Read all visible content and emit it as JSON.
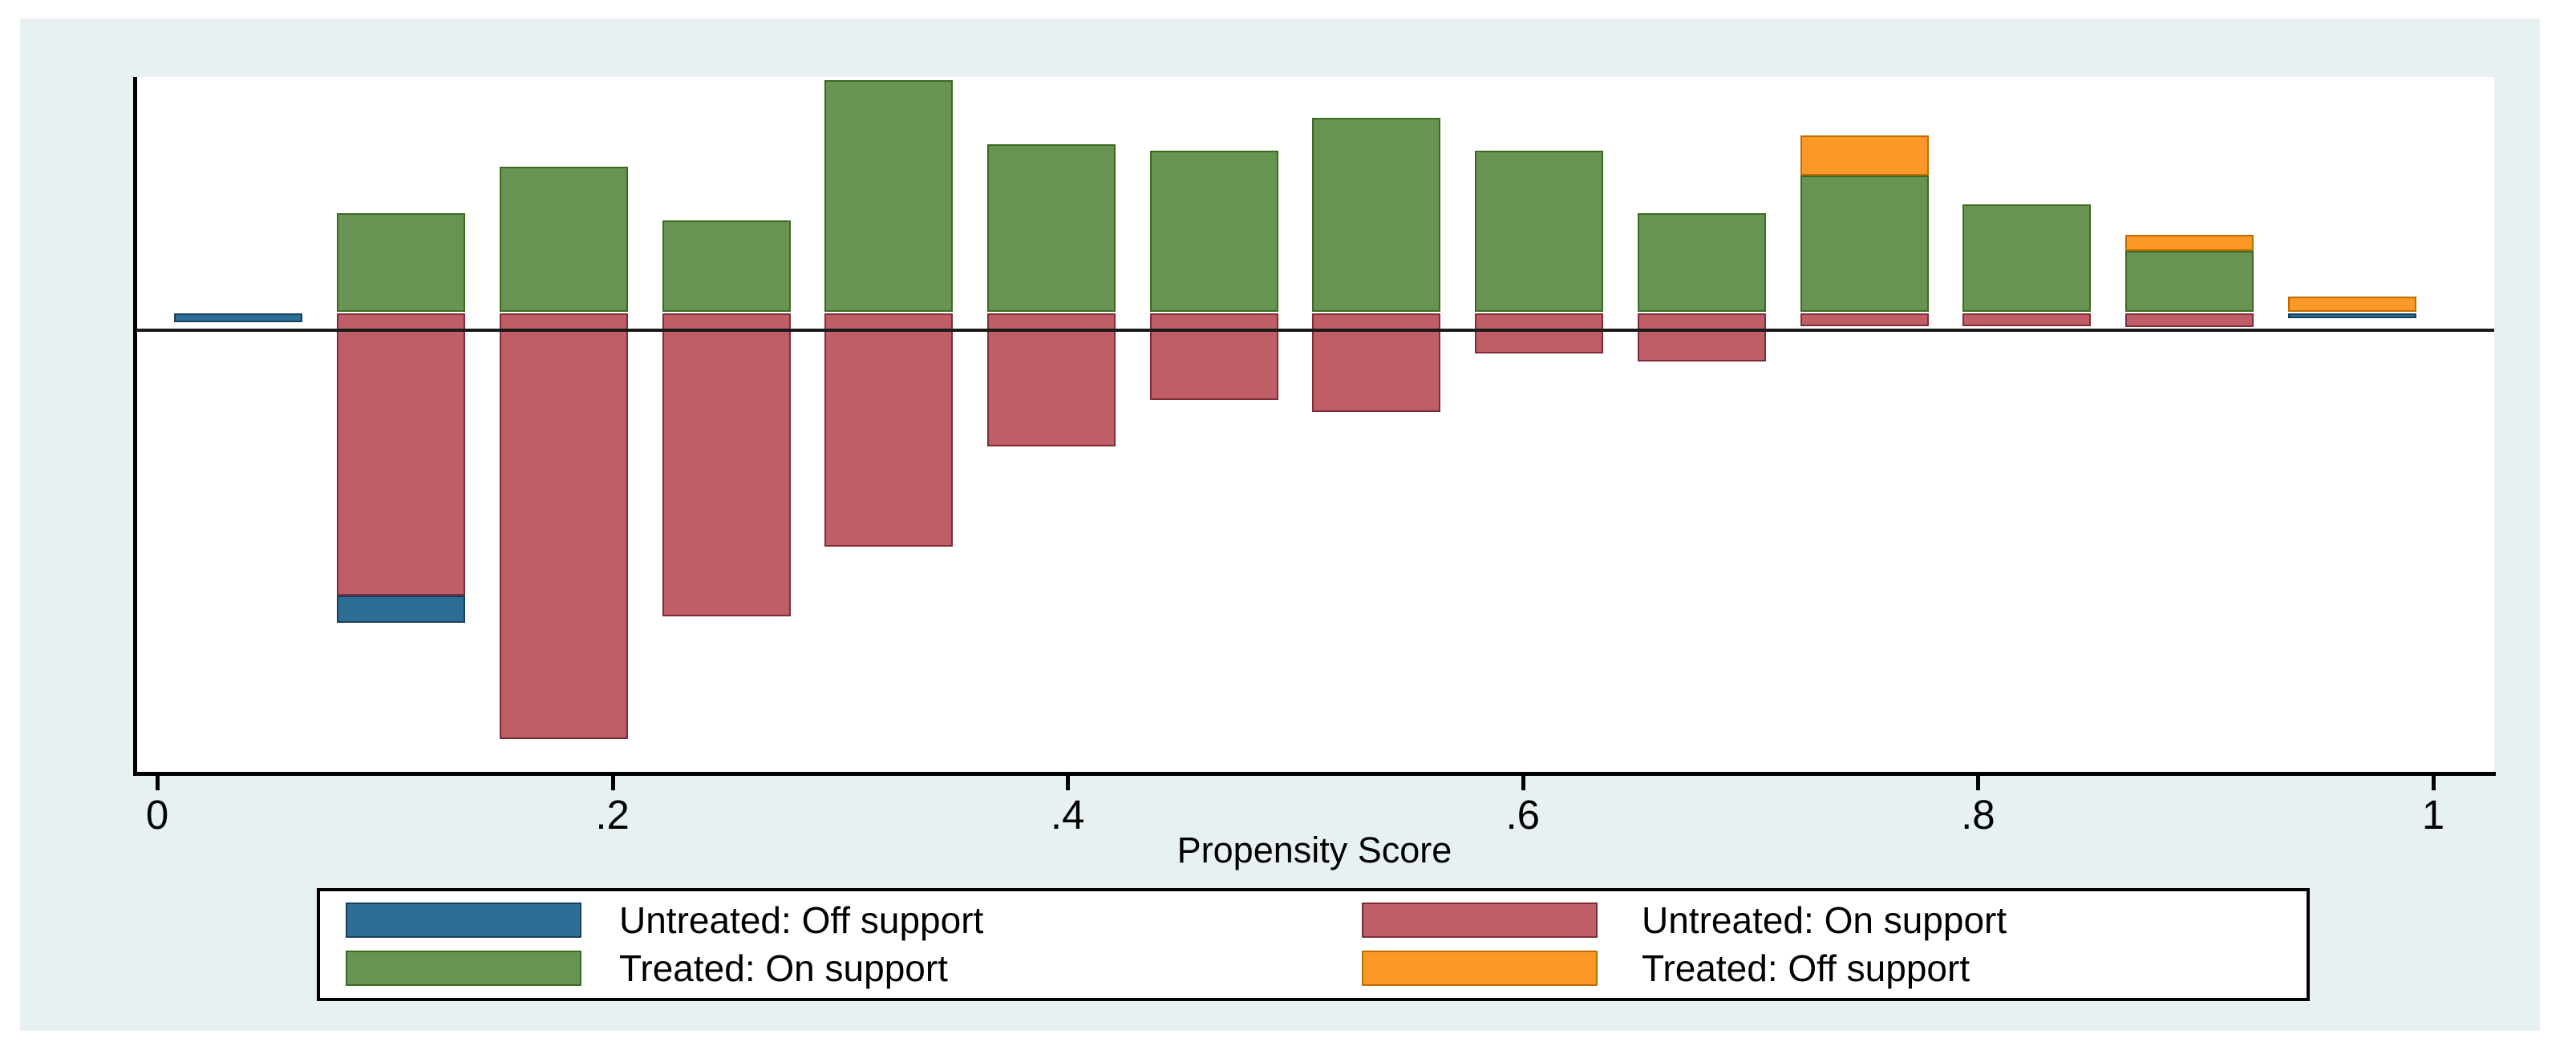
{
  "figure": {
    "canvas_color": "#e8f1f2",
    "plot_background": "#ffffff",
    "axis_color": "#000000"
  },
  "axis": {
    "title": "Propensity Score",
    "range": [
      0,
      1
    ],
    "ticks": [
      {
        "label": "0",
        "value": 0
      },
      {
        "label": ".2",
        "value": 0.2
      },
      {
        "label": ".4",
        "value": 0.4
      },
      {
        "label": ".6",
        "value": 0.6
      },
      {
        "label": ".8",
        "value": 0.8
      },
      {
        "label": "1",
        "value": 1
      }
    ]
  },
  "series_colors": {
    "untreated_off": {
      "fill": "#2d6d96",
      "border": "#17405c"
    },
    "untreated_on": {
      "fill": "#bf5e66",
      "border": "#7e2d38"
    },
    "treated_on": {
      "fill": "#689453",
      "border": "#3a6b20"
    },
    "treated_off": {
      "fill": "#fb9827",
      "border": "#c06b00"
    }
  },
  "legend": {
    "items": [
      {
        "series": "untreated_off",
        "label": "Untreated: Off support",
        "column": 0,
        "row": 0
      },
      {
        "series": "untreated_on",
        "label": "Untreated: On support",
        "column": 1,
        "row": 0
      },
      {
        "series": "treated_on",
        "label": "Treated: On support",
        "column": 0,
        "row": 1
      },
      {
        "series": "treated_off",
        "label": "Treated: Off support",
        "column": 1,
        "row": 1
      }
    ]
  },
  "chart_data": {
    "type": "bar",
    "subtype": "diverging-stacked-histogram",
    "title": "",
    "xlabel": "Propensity Score",
    "ylabel": "",
    "x_range": [
      0,
      1
    ],
    "grid": false,
    "legend_position": "bottom",
    "units": "fraction of group per bin (y axis unlabeled; treated above zero line, untreated below)",
    "bins": [
      {
        "ps_min": 0.0,
        "ps_max": 0.0714,
        "treated_on": 0,
        "treated_off": 0,
        "untreated_on": 0,
        "untreated_off": 0.005
      },
      {
        "ps_min": 0.0714,
        "ps_max": 0.1429,
        "treated_on": 0.057,
        "treated_off": 0,
        "untreated_on": 0.163,
        "untreated_off": 0.016
      },
      {
        "ps_min": 0.1429,
        "ps_max": 0.2143,
        "treated_on": 0.084,
        "treated_off": 0,
        "untreated_on": 0.246,
        "untreated_off": 0
      },
      {
        "ps_min": 0.2143,
        "ps_max": 0.2857,
        "treated_on": 0.053,
        "treated_off": 0,
        "untreated_on": 0.175,
        "untreated_off": 0
      },
      {
        "ps_min": 0.2857,
        "ps_max": 0.3571,
        "treated_on": 0.134,
        "treated_off": 0,
        "untreated_on": 0.135,
        "untreated_off": 0
      },
      {
        "ps_min": 0.3571,
        "ps_max": 0.4286,
        "treated_on": 0.097,
        "treated_off": 0,
        "untreated_on": 0.077,
        "untreated_off": 0
      },
      {
        "ps_min": 0.4286,
        "ps_max": 0.5,
        "treated_on": 0.093,
        "treated_off": 0,
        "untreated_on": 0.05,
        "untreated_off": 0
      },
      {
        "ps_min": 0.5,
        "ps_max": 0.5714,
        "treated_on": 0.112,
        "treated_off": 0,
        "untreated_on": 0.057,
        "untreated_off": 0
      },
      {
        "ps_min": 0.5714,
        "ps_max": 0.6429,
        "treated_on": 0.093,
        "treated_off": 0,
        "untreated_on": 0.023,
        "untreated_off": 0
      },
      {
        "ps_min": 0.6429,
        "ps_max": 0.7143,
        "treated_on": 0.057,
        "treated_off": 0,
        "untreated_on": 0.028,
        "untreated_off": 0
      },
      {
        "ps_min": 0.7143,
        "ps_max": 0.7857,
        "treated_on": 0.079,
        "treated_off": 0.023,
        "untreated_on": 0.0075,
        "untreated_off": 0
      },
      {
        "ps_min": 0.7857,
        "ps_max": 0.8571,
        "treated_on": 0.062,
        "treated_off": 0,
        "untreated_on": 0.0075,
        "untreated_off": 0
      },
      {
        "ps_min": 0.8571,
        "ps_max": 0.9286,
        "treated_on": 0.035,
        "treated_off": 0.0093,
        "untreated_on": 0.008,
        "untreated_off": 0
      },
      {
        "ps_min": 0.9286,
        "ps_max": 1.0,
        "treated_on": 0,
        "treated_off": 0.009,
        "untreated_on": 0,
        "untreated_off": 0.003
      }
    ]
  }
}
